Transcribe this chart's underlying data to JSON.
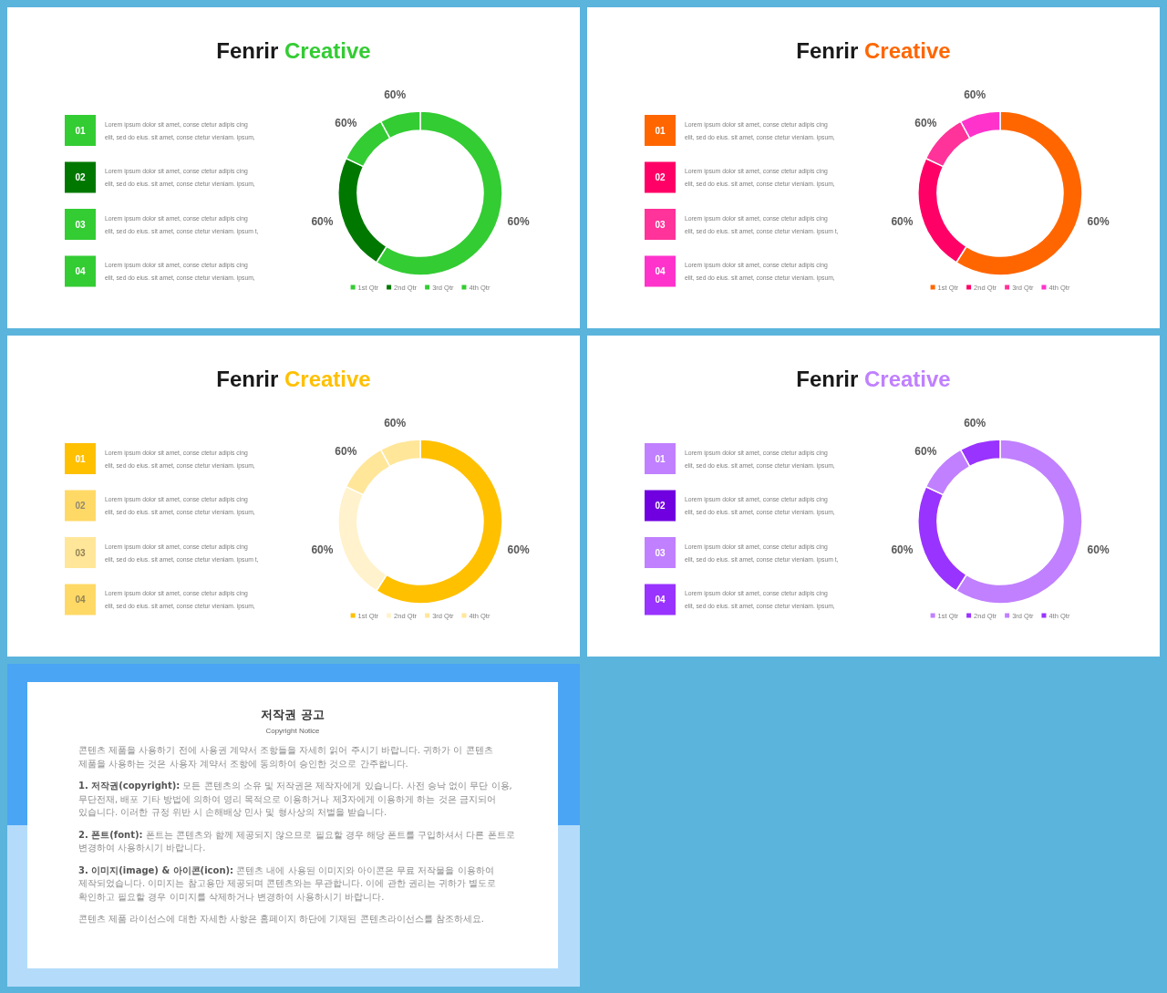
{
  "chart_data": [
    {
      "type": "other",
      "colors": [
        "#33cc33",
        "#007800",
        "#33cc33",
        "#33cc33"
      ],
      "annotations": [
        "Lorem ipsum dolor sit amet, conse ctetur adipis cing",
        "elit, sed do eius. sit amet, conse ctetur vieniam. ipsum,",
        "Lorem ipsum dolor sit amet, conse ctetur adipis cing",
        "elit, sed do eius. sit amet, conse ctetur vieniam. ipsum,",
        "Lorem ipsum dolor sit amet, conse ctetur adipis cing",
        "elit, sed do eius. sit amet, conse ctetur vieniam. ipsum t,",
        "Lorem ipsum dolor sit amet, conse ctetur adipis cing",
        "elit, sed do eius. sit amet, conse ctetur vieniam. ipsum,"
      ]
    },
    {
      "type": "donut",
      "title": "Fenrir Creative",
      "categories": [
        "1st Qtr",
        "2nd Qtr",
        "3rd Qtr",
        "4th Qtr"
      ],
      "values": [
        59,
        23,
        10,
        8
      ],
      "colors": [
        "#33cc33",
        "#007800",
        "#33cc33",
        "#33cc33"
      ],
      "legend": "bottom",
      "annotations": [
        {
          "text": "60%",
          "x": "1st Qtr"
        },
        {
          "text": "60%",
          "x": "2nd Qtr"
        },
        {
          "text": "60%",
          "x": "3rd Qtr"
        },
        {
          "text": "60%",
          "x": "4th Qtr"
        },
        "01",
        "02",
        "03",
        "04"
      ]
    },
    {
      "type": "other",
      "colors": [
        "#ff6600",
        "#ff0066",
        "#ff3399",
        "#ff33cc"
      ],
      "annotations": [
        "Lorem ipsum dolor sit amet, conse ctetur adipis cing",
        "elit, sed do eius. sit amet, conse ctetur vieniam. ipsum,",
        "Lorem ipsum dolor sit amet, conse ctetur adipis cing",
        "elit, sed do eius. sit amet, conse ctetur vieniam. ipsum,",
        "Lorem ipsum dolor sit amet, conse ctetur adipis cing",
        "elit, sed do eius. sit amet, conse ctetur vieniam. ipsum t,",
        "Lorem ipsum dolor sit amet, conse ctetur adipis cing",
        "elit, sed do eius. sit amet, conse ctetur vieniam. ipsum,"
      ]
    },
    {
      "type": "donut",
      "title": "Fenrir Creative",
      "categories": [
        "1st Qtr",
        "2nd Qtr",
        "3rd Qtr",
        "4th Qtr"
      ],
      "values": [
        59,
        23,
        10,
        8
      ],
      "colors": [
        "#ff6600",
        "#ff0066",
        "#ff3399",
        "#ff33cc"
      ],
      "legend": "bottom",
      "annotations": [
        {
          "text": "60%",
          "x": "1st Qtr"
        },
        {
          "text": "60%",
          "x": "2nd Qtr"
        },
        {
          "text": "60%",
          "x": "3rd Qtr"
        },
        {
          "text": "60%",
          "x": "4th Qtr"
        },
        "01",
        "02",
        "03",
        "04"
      ]
    },
    {
      "type": "other",
      "colors": [
        "#ffc000",
        "#ffd966",
        "#ffe699",
        "#ffd966"
      ],
      "annotations": [
        "Lorem ipsum dolor sit amet, conse ctetur adipis cing",
        "elit, sed do eius. sit amet, conse ctetur vieniam. ipsum,",
        "Lorem ipsum dolor sit amet, conse ctetur adipis cing",
        "elit, sed do eius. sit amet, conse ctetur vieniam. ipsum,",
        "Lorem ipsum dolor sit amet, conse ctetur adipis cing",
        "elit, sed do eius. sit amet, conse ctetur vieniam. ipsum t,",
        "Lorem ipsum dolor sit amet, conse ctetur adipis cing",
        "elit, sed do eius. sit amet, conse ctetur vieniam. ipsum,"
      ]
    },
    {
      "type": "donut",
      "title": "Fenrir Creative",
      "categories": [
        "1st Qtr",
        "2nd Qtr",
        "3rd Qtr",
        "4th Qtr"
      ],
      "values": [
        59,
        23,
        10,
        8
      ],
      "colors": [
        "#ffc000",
        "#fff2cc",
        "#ffe699",
        "#ffe699"
      ],
      "legend": "bottom",
      "annotations": [
        {
          "text": "60%",
          "x": "1st Qtr"
        },
        {
          "text": "60%",
          "x": "2nd Qtr"
        },
        {
          "text": "60%",
          "x": "3rd Qtr"
        },
        {
          "text": "60%",
          "x": "4th Qtr"
        },
        "01",
        "02",
        "03",
        "04"
      ]
    },
    {
      "type": "other",
      "colors": [
        "#c080ff",
        "#7000e0",
        "#c080ff",
        "#9933ff"
      ],
      "annotations": [
        "Lorem ipsum dolor sit amet, conse ctetur adipis cing",
        "elit, sed do eius. sit amet, conse ctetur vieniam. ipsum,",
        "Lorem ipsum dolor sit amet, conse ctetur adipis cing",
        "elit, sed do eius. sit amet, conse ctetur vieniam. ipsum,",
        "Lorem ipsum dolor sit amet, conse ctetur adipis cing",
        "elit, sed do eius. sit amet, conse ctetur vieniam. ipsum t,",
        "Lorem ipsum dolor sit amet, conse ctetur adipis cing",
        "elit, sed do eius. sit amet, conse ctetur vieniam. ipsum,"
      ]
    },
    {
      "type": "donut",
      "title": "Fenrir Creative",
      "categories": [
        "1st Qtr",
        "2nd Qtr",
        "3rd Qtr",
        "4th Qtr"
      ],
      "values": [
        59,
        23,
        10,
        8
      ],
      "colors": [
        "#c080ff",
        "#9933ff",
        "#c080ff",
        "#9933ff"
      ],
      "legend": "bottom",
      "annotations": [
        {
          "text": "60%",
          "x": "1st Qtr"
        },
        {
          "text": "60%",
          "x": "2nd Qtr"
        },
        {
          "text": "60%",
          "x": "3rd Qtr"
        },
        {
          "text": "60%",
          "x": "4th Qtr"
        },
        "01",
        "02",
        "03",
        "04"
      ]
    },
    {
      "type": "other",
      "title": "저작권 공고",
      "subtitle": "Copyright Notice",
      "annotations": [
        "콘텐츠 제품을 사용하기 전에 사용권 계약서 조항들을 자세히 읽어 주시기 바랍니다. 귀하가 이 콘텐츠 제품을 사용하는 것은 사용자 계약서 조항에 동의하여 승인한 것으로 간주합니다.",
        "1. 저작권(copyright): 모든 콘텐츠의 소유 및 저작권은 제작자에게 있습니다. 사전 승낙 없이 무단 이용, 무단전재, 배포 기타 방법에 의하여 영리 목적으로 이용하거나 제3자에게 이용하게 하는 것은 금지되어 있습니다. 이러한 규정 위반 시 손해배상 민사 및 형사상의 처벌을 받습니다.",
        "2. 폰트(font): 폰트는 콘텐츠와 함께 제공되지 않으므로 필요할 경우 해당 폰트를 구입하셔서 다른 폰트로 변경하여 사용하시기 바랍니다.",
        "3. 이미지(image) & 아이콘(icon): 콘텐츠 내에 사용된 이미지와 아이콘은 무료 저작물을 이용하여 제작되었습니다. 이미지는 참고용만 제공되며 콘텐츠와는 무관합니다. 이에 관한 권리는 귀하가 별도로 확인하고 필요할 경우 이미지를 삭제하거나 변경하여 사용하시기 바랍니다.",
        "콘텐츠 제품 라이선스에 대한 자세한 사항은 홈페이지 하단에 기재된 콘텐츠라이선스를 참조하세요."
      ]
    }
  ]
}
